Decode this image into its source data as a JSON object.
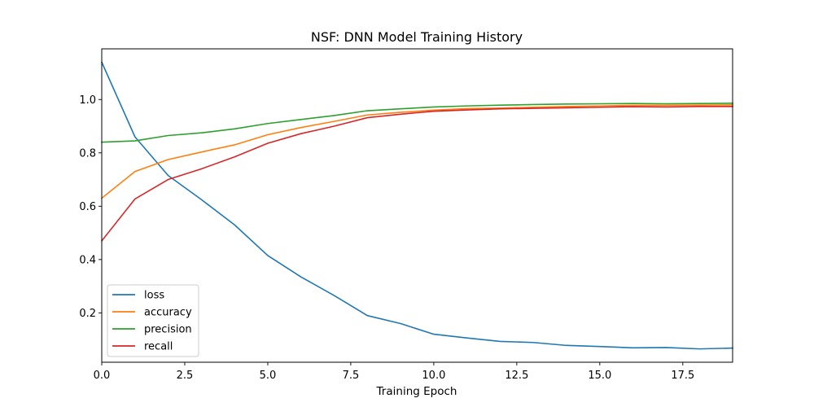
{
  "chart_data": {
    "type": "line",
    "title": "NSF: DNN Model Training History",
    "xlabel": "Training Epoch",
    "ylabel": "",
    "xlim": [
      0,
      19
    ],
    "ylim": [
      0.015,
      1.19
    ],
    "xticks": [
      0.0,
      2.5,
      5.0,
      7.5,
      10.0,
      12.5,
      15.0,
      17.5
    ],
    "xtick_labels": [
      "0.0",
      "2.5",
      "5.0",
      "7.5",
      "10.0",
      "12.5",
      "15.0",
      "17.5"
    ],
    "yticks": [
      0.2,
      0.4,
      0.6,
      0.8,
      1.0
    ],
    "ytick_labels": [
      "0.2",
      "0.4",
      "0.6",
      "0.8",
      "1.0"
    ],
    "grid": false,
    "legend_position": "lower-left",
    "x": [
      0,
      1,
      2,
      3,
      4,
      5,
      6,
      7,
      8,
      9,
      10,
      11,
      12,
      13,
      14,
      15,
      16,
      17,
      18,
      19
    ],
    "series": [
      {
        "name": "loss",
        "color": "#1f77b4",
        "values": [
          1.14,
          0.86,
          0.715,
          0.625,
          0.53,
          0.415,
          0.335,
          0.265,
          0.19,
          0.16,
          0.12,
          0.106,
          0.093,
          0.089,
          0.078,
          0.074,
          0.069,
          0.07,
          0.065,
          0.068
        ]
      },
      {
        "name": "accuracy",
        "color": "#ff7f0e",
        "values": [
          0.63,
          0.73,
          0.775,
          0.803,
          0.83,
          0.868,
          0.895,
          0.918,
          0.942,
          0.952,
          0.96,
          0.966,
          0.968,
          0.971,
          0.974,
          0.976,
          0.978,
          0.978,
          0.979,
          0.98
        ]
      },
      {
        "name": "precision",
        "color": "#2ca02c",
        "values": [
          0.84,
          0.845,
          0.865,
          0.875,
          0.89,
          0.91,
          0.925,
          0.94,
          0.958,
          0.965,
          0.972,
          0.976,
          0.979,
          0.981,
          0.983,
          0.984,
          0.985,
          0.984,
          0.985,
          0.986
        ]
      },
      {
        "name": "recall",
        "color": "#d62728",
        "values": [
          0.47,
          0.627,
          0.7,
          0.74,
          0.785,
          0.836,
          0.872,
          0.9,
          0.932,
          0.945,
          0.956,
          0.961,
          0.965,
          0.967,
          0.969,
          0.971,
          0.973,
          0.972,
          0.974,
          0.974
        ]
      }
    ]
  }
}
